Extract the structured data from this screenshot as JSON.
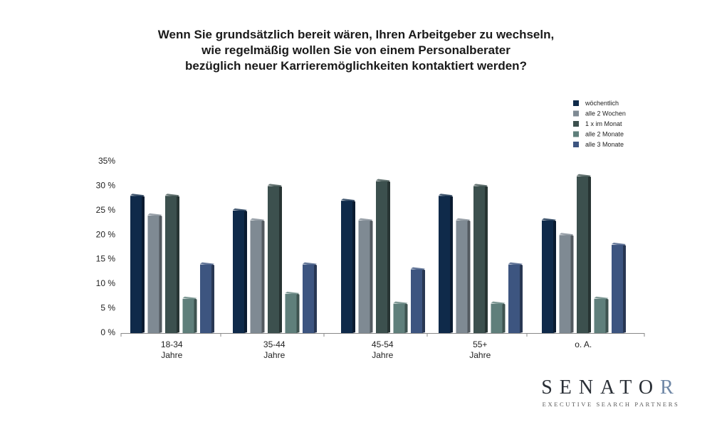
{
  "chart_data": {
    "type": "bar",
    "title": [
      "Wenn Sie grundsätzlich bereit wären, Ihren Arbeitgeber zu wechseln,",
      "wie regelmäßig wollen Sie von einem Personalberater",
      "bezüglich neuer Karrieremöglichkeiten kontaktiert werden?"
    ],
    "categories": [
      [
        "18-34",
        "Jahre"
      ],
      [
        "35-44",
        "Jahre"
      ],
      [
        "45-54",
        "Jahre"
      ],
      [
        "55+",
        "Jahre"
      ],
      [
        "o. A."
      ]
    ],
    "y_ticks": [
      "0 %",
      "5 %",
      "10 %",
      "15 %",
      "20 %",
      "25 %",
      "30 %",
      "35%"
    ],
    "ylim": [
      0,
      35
    ],
    "grid": false,
    "legend_position": "top-right",
    "series": [
      {
        "name": "wöchentlich",
        "color": "#0f2a4a",
        "values": [
          28,
          25,
          27,
          28,
          23
        ]
      },
      {
        "name": "alle 2 Wochen",
        "color": "#7f8a93",
        "values": [
          24,
          23,
          23,
          23,
          20
        ]
      },
      {
        "name": "1 x im Monat",
        "color": "#3c504e",
        "values": [
          28,
          30,
          31,
          30,
          32
        ]
      },
      {
        "name": "alle 2 Monate",
        "color": "#5f7f7b",
        "values": [
          7,
          8,
          6,
          6,
          7
        ]
      },
      {
        "name": "alle 3 Monate",
        "color": "#3d5580",
        "values": [
          14,
          14,
          13,
          14,
          18
        ]
      }
    ]
  },
  "logo": {
    "name_main": "SENATO",
    "name_accent": "R",
    "tagline": "EXECUTIVE SEARCH PARTNERS"
  }
}
